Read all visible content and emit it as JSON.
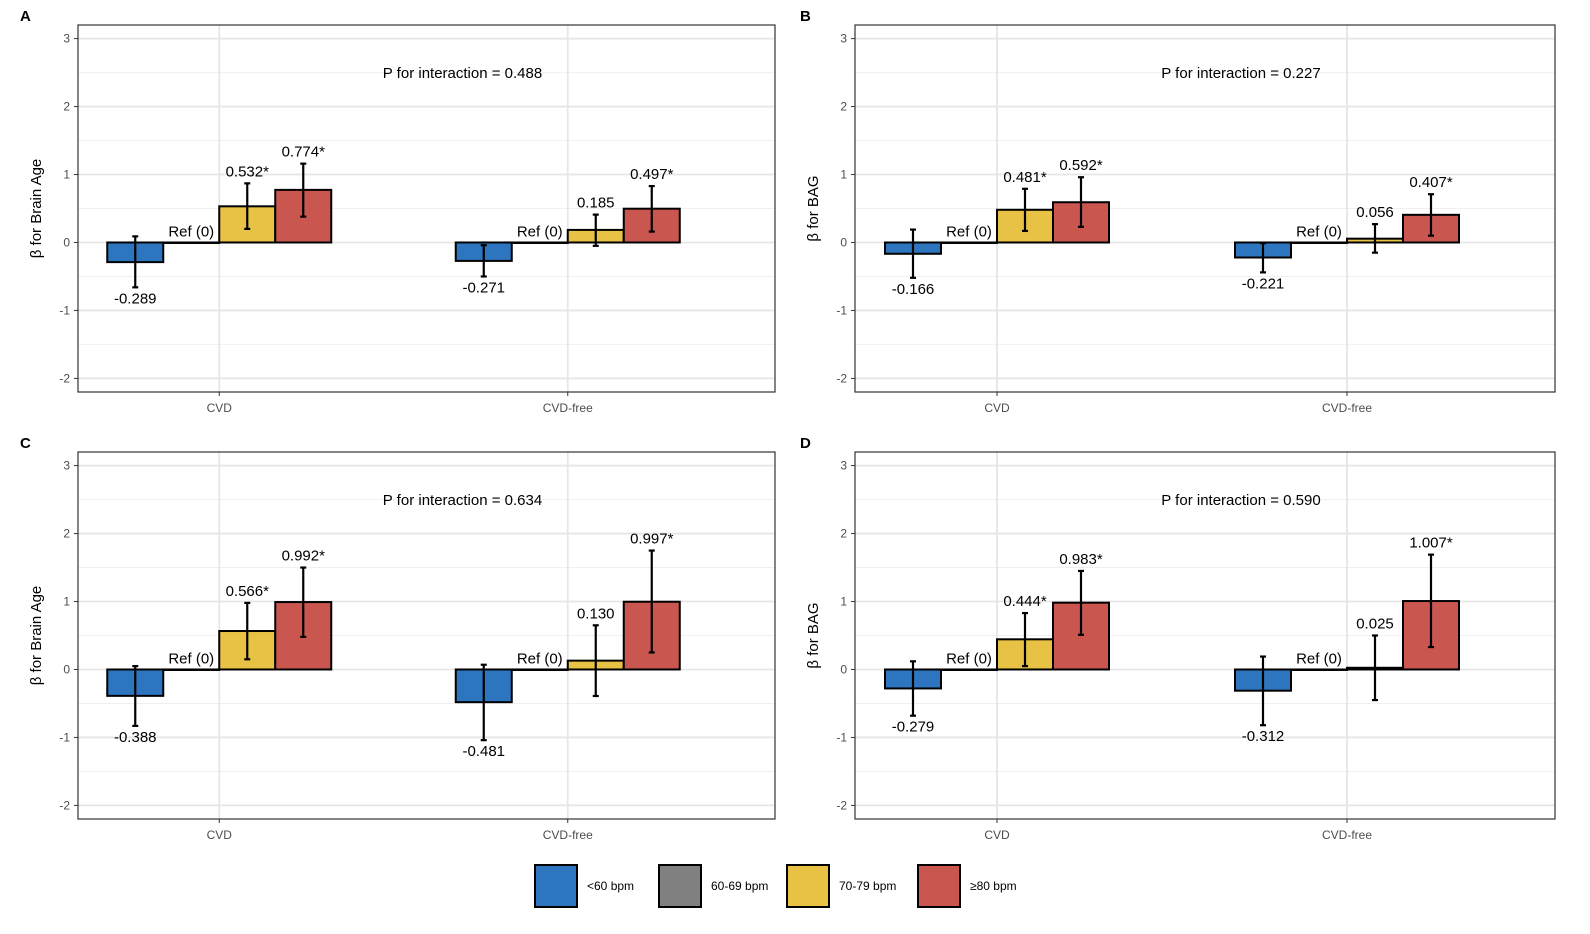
{
  "chart_data": [
    {
      "panel": "A",
      "type": "bar",
      "ylabel": "β for Brain Age",
      "annotation": "P for interaction = 0.488",
      "categories": [
        "CVD",
        "CVD-free"
      ],
      "yticks": [
        -2,
        -1,
        0,
        1,
        2,
        3
      ],
      "ylim": [
        -2.2,
        3.2
      ],
      "grid": true,
      "series": [
        {
          "name": "<60 bpm",
          "values": [
            -0.289,
            -0.271
          ],
          "ci": [
            [
              -0.66,
              0.09
            ],
            [
              -0.5,
              -0.04
            ]
          ],
          "labels": [
            "-0.289",
            "-0.271"
          ]
        },
        {
          "name": "60-69 bpm",
          "values": [
            0,
            0
          ],
          "ci": [
            null,
            null
          ],
          "labels": [
            "Ref (0)",
            "Ref (0)"
          ]
        },
        {
          "name": "70-79 bpm",
          "values": [
            0.532,
            0.185
          ],
          "ci": [
            [
              0.2,
              0.87
            ],
            [
              -0.05,
              0.41
            ]
          ],
          "labels": [
            "0.532*",
            "0.185"
          ]
        },
        {
          "name": "≥80 bpm",
          "values": [
            0.774,
            0.497
          ],
          "ci": [
            [
              0.38,
              1.16
            ],
            [
              0.16,
              0.83
            ]
          ],
          "labels": [
            "0.774*",
            "0.497*"
          ]
        }
      ]
    },
    {
      "panel": "B",
      "type": "bar",
      "ylabel": "β for BAG",
      "annotation": "P for interaction = 0.227",
      "categories": [
        "CVD",
        "CVD-free"
      ],
      "yticks": [
        -2,
        -1,
        0,
        1,
        2,
        3
      ],
      "ylim": [
        -2.2,
        3.2
      ],
      "grid": true,
      "series": [
        {
          "name": "<60 bpm",
          "values": [
            -0.166,
            -0.221
          ],
          "ci": [
            [
              -0.52,
              0.19
            ],
            [
              -0.44,
              -0.01
            ]
          ],
          "labels": [
            "-0.166",
            "-0.221"
          ]
        },
        {
          "name": "60-69 bpm",
          "values": [
            0,
            0
          ],
          "ci": [
            null,
            null
          ],
          "labels": [
            "Ref (0)",
            "Ref (0)"
          ]
        },
        {
          "name": "70-79 bpm",
          "values": [
            0.481,
            0.056
          ],
          "ci": [
            [
              0.17,
              0.79
            ],
            [
              -0.15,
              0.27
            ]
          ],
          "labels": [
            "0.481*",
            "0.056"
          ]
        },
        {
          "name": "≥80 bpm",
          "values": [
            0.592,
            0.407
          ],
          "ci": [
            [
              0.23,
              0.96
            ],
            [
              0.1,
              0.71
            ]
          ],
          "labels": [
            "0.592*",
            "0.407*"
          ]
        }
      ]
    },
    {
      "panel": "C",
      "type": "bar",
      "ylabel": "β for Brain Age",
      "annotation": "P for interaction = 0.634",
      "categories": [
        "CVD",
        "CVD-free"
      ],
      "yticks": [
        -2,
        -1,
        0,
        1,
        2,
        3
      ],
      "ylim": [
        -2.2,
        3.2
      ],
      "grid": true,
      "series": [
        {
          "name": "<60 bpm",
          "values": [
            -0.388,
            -0.481
          ],
          "ci": [
            [
              -0.83,
              0.05
            ],
            [
              -1.04,
              0.07
            ]
          ],
          "labels": [
            "-0.388",
            "-0.481"
          ]
        },
        {
          "name": "60-69 bpm",
          "values": [
            0,
            0
          ],
          "ci": [
            null,
            null
          ],
          "labels": [
            "Ref (0)",
            "Ref (0)"
          ]
        },
        {
          "name": "70-79 bpm",
          "values": [
            0.566,
            0.13
          ],
          "ci": [
            [
              0.15,
              0.98
            ],
            [
              -0.39,
              0.65
            ]
          ],
          "labels": [
            "0.566*",
            "0.130"
          ]
        },
        {
          "name": "≥80 bpm",
          "values": [
            0.992,
            0.997
          ],
          "ci": [
            [
              0.48,
              1.5
            ],
            [
              0.25,
              1.75
            ]
          ],
          "labels": [
            "0.992*",
            "0.997*"
          ]
        }
      ]
    },
    {
      "panel": "D",
      "type": "bar",
      "ylabel": "β for BAG",
      "annotation": "P for interaction = 0.590",
      "categories": [
        "CVD",
        "CVD-free"
      ],
      "yticks": [
        -2,
        -1,
        0,
        1,
        2,
        3
      ],
      "ylim": [
        -2.2,
        3.2
      ],
      "grid": true,
      "series": [
        {
          "name": "<60 bpm",
          "values": [
            -0.279,
            -0.312
          ],
          "ci": [
            [
              -0.68,
              0.12
            ],
            [
              -0.82,
              0.19
            ]
          ],
          "labels": [
            "-0.279",
            "-0.312"
          ]
        },
        {
          "name": "60-69 bpm",
          "values": [
            0,
            0
          ],
          "ci": [
            null,
            null
          ],
          "labels": [
            "Ref (0)",
            "Ref (0)"
          ]
        },
        {
          "name": "70-79 bpm",
          "values": [
            0.444,
            0.025
          ],
          "ci": [
            [
              0.05,
              0.83
            ],
            [
              -0.45,
              0.5
            ]
          ],
          "labels": [
            "0.444*",
            "0.025"
          ]
        },
        {
          "name": "≥80 bpm",
          "values": [
            0.983,
            1.007
          ],
          "ci": [
            [
              0.51,
              1.45
            ],
            [
              0.33,
              1.69
            ]
          ],
          "labels": [
            "0.983*",
            "1.007*"
          ]
        }
      ]
    }
  ],
  "legend": {
    "position": "bottom",
    "items": [
      {
        "label": "<60 bpm",
        "color": "#2e75c0"
      },
      {
        "label": "60-69 bpm",
        "color": "#808080"
      },
      {
        "label": "70-79 bpm",
        "color": "#e8c244"
      },
      {
        "label": "≥80 bpm",
        "color": "#c9574f"
      }
    ]
  },
  "colors": {
    "grid": "#e6e6e6",
    "panel_border": "#333333",
    "bar_outline": "#000000",
    "axis_text": "#4d4d4d"
  }
}
